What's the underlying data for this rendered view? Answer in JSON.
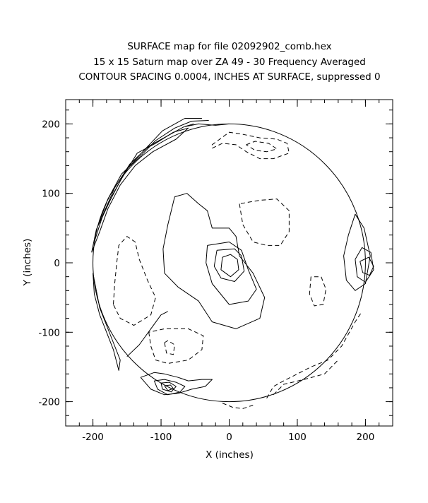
{
  "chart_data": {
    "type": "contour",
    "title_lines": [
      "SURFACE map for file 02092902_comb.hex",
      "15 x 15 Saturn map over ZA 49 - 30  Frequency Averaged",
      "CONTOUR SPACING 0.0004, INCHES AT SURFACE, suppressed 0"
    ],
    "xlabel": "X (inches)",
    "ylabel": "Y (inches)",
    "xlim": [
      -240,
      240
    ],
    "ylim": [
      -235,
      235
    ],
    "x_ticks": [
      -200,
      -100,
      0,
      100,
      200
    ],
    "y_ticks": [
      -200,
      -100,
      0,
      100,
      200
    ],
    "x_minor_step": 20,
    "y_minor_step": 20,
    "boundary_circle": {
      "center": [
        0,
        0
      ],
      "radius": 200
    },
    "contours": [
      {
        "style": "solid",
        "points": [
          [
            -95,
            -15
          ],
          [
            -97,
            20
          ],
          [
            -90,
            55
          ],
          [
            -80,
            95
          ],
          [
            -62,
            100
          ],
          [
            -45,
            85
          ],
          [
            -32,
            75
          ],
          [
            -25,
            50
          ],
          [
            0,
            50
          ],
          [
            10,
            38
          ],
          [
            15,
            10
          ],
          [
            35,
            -15
          ],
          [
            52,
            -50
          ],
          [
            45,
            -80
          ],
          [
            10,
            -95
          ],
          [
            -25,
            -85
          ],
          [
            -45,
            -55
          ],
          [
            -75,
            -35
          ],
          [
            -95,
            -15
          ]
        ]
      },
      {
        "style": "solid",
        "points": [
          [
            -32,
            25
          ],
          [
            -34,
            0
          ],
          [
            -25,
            -30
          ],
          [
            0,
            -60
          ],
          [
            28,
            -55
          ],
          [
            40,
            -38
          ],
          [
            28,
            -10
          ],
          [
            18,
            18
          ],
          [
            0,
            30
          ],
          [
            -32,
            25
          ]
        ]
      },
      {
        "style": "solid",
        "points": [
          [
            -18,
            18
          ],
          [
            -22,
            -5
          ],
          [
            -12,
            -22
          ],
          [
            8,
            -27
          ],
          [
            22,
            -12
          ],
          [
            18,
            10
          ],
          [
            8,
            20
          ],
          [
            -18,
            18
          ]
        ]
      },
      {
        "style": "solid",
        "points": [
          [
            -10,
            8
          ],
          [
            -12,
            -10
          ],
          [
            2,
            -20
          ],
          [
            14,
            -10
          ],
          [
            12,
            5
          ],
          [
            2,
            12
          ],
          [
            -10,
            8
          ]
        ]
      },
      {
        "style": "solid",
        "points": [
          [
            -202,
            15
          ],
          [
            -195,
            48
          ],
          [
            -180,
            80
          ],
          [
            -160,
            118
          ],
          [
            -135,
            158
          ],
          [
            -108,
            172
          ],
          [
            -82,
            188
          ],
          [
            -60,
            194
          ],
          [
            -78,
            178
          ],
          [
            -112,
            160
          ],
          [
            -138,
            140
          ],
          [
            -160,
            112
          ],
          [
            -178,
            78
          ],
          [
            -190,
            45
          ],
          [
            -202,
            15
          ]
        ]
      },
      {
        "style": "solid",
        "points": [
          [
            -198,
            30
          ],
          [
            -185,
            70
          ],
          [
            -168,
            108
          ],
          [
            -146,
            142
          ],
          [
            -118,
            168
          ],
          [
            -92,
            182
          ],
          [
            -66,
            196
          ],
          [
            -52,
            200
          ]
        ]
      },
      {
        "style": "solid",
        "points": [
          [
            -192,
            55
          ],
          [
            -178,
            92
          ],
          [
            -158,
            128
          ],
          [
            -132,
            152
          ],
          [
            -108,
            176
          ],
          [
            -80,
            194
          ],
          [
            -55,
            204
          ],
          [
            -30,
            205
          ]
        ]
      },
      {
        "style": "solid",
        "points": [
          [
            -188,
            62
          ],
          [
            -170,
            100
          ],
          [
            -150,
            135
          ],
          [
            -125,
            162
          ],
          [
            -98,
            190
          ],
          [
            -65,
            208
          ],
          [
            -40,
            208
          ]
        ]
      },
      {
        "style": "solid",
        "points": [
          [
            -200,
            -15
          ],
          [
            -195,
            -40
          ],
          [
            -190,
            -65
          ],
          [
            -180,
            -90
          ],
          [
            -170,
            -115
          ],
          [
            -160,
            -140
          ],
          [
            -162,
            -155
          ],
          [
            -170,
            -125
          ],
          [
            -180,
            -100
          ],
          [
            -190,
            -75
          ],
          [
            -198,
            -45
          ],
          [
            -200,
            -15
          ]
        ]
      },
      {
        "style": "solid",
        "points": [
          [
            -150,
            -135
          ],
          [
            -132,
            -118
          ],
          [
            -115,
            -95
          ],
          [
            -100,
            -75
          ],
          [
            -90,
            -70
          ]
        ]
      },
      {
        "style": "solid",
        "points": [
          [
            -130,
            -165
          ],
          [
            -110,
            -158
          ],
          [
            -95,
            -160
          ],
          [
            -75,
            -165
          ],
          [
            -60,
            -170
          ],
          [
            -40,
            -168
          ],
          [
            -25,
            -168
          ],
          [
            -35,
            -178
          ],
          [
            -55,
            -182
          ],
          [
            -75,
            -188
          ],
          [
            -95,
            -190
          ],
          [
            -115,
            -182
          ],
          [
            -130,
            -165
          ]
        ]
      },
      {
        "style": "solid",
        "points": [
          [
            -110,
            -170
          ],
          [
            -95,
            -168
          ],
          [
            -78,
            -172
          ],
          [
            -65,
            -178
          ],
          [
            -72,
            -186
          ],
          [
            -90,
            -190
          ],
          [
            -105,
            -182
          ],
          [
            -110,
            -170
          ]
        ]
      },
      {
        "style": "solid",
        "points": [
          [
            -100,
            -173
          ],
          [
            -88,
            -172
          ],
          [
            -78,
            -178
          ],
          [
            -85,
            -186
          ],
          [
            -98,
            -182
          ],
          [
            -100,
            -173
          ]
        ]
      },
      {
        "style": "solid",
        "points": [
          [
            -95,
            -177
          ],
          [
            -86,
            -176
          ],
          [
            -82,
            -181
          ],
          [
            -90,
            -184
          ],
          [
            -95,
            -177
          ]
        ]
      },
      {
        "style": "solid",
        "points": [
          [
            175,
            40
          ],
          [
            168,
            10
          ],
          [
            172,
            -25
          ],
          [
            185,
            -40
          ],
          [
            200,
            -30
          ],
          [
            207,
            10
          ],
          [
            198,
            50
          ],
          [
            185,
            70
          ],
          [
            175,
            40
          ]
        ]
      },
      {
        "style": "solid",
        "points": [
          [
            185,
            5
          ],
          [
            188,
            -20
          ],
          [
            200,
            -28
          ],
          [
            212,
            -10
          ],
          [
            208,
            15
          ],
          [
            195,
            22
          ],
          [
            185,
            5
          ]
        ]
      },
      {
        "style": "solid",
        "points": [
          [
            192,
            2
          ],
          [
            196,
            -14
          ],
          [
            206,
            -18
          ],
          [
            212,
            -5
          ],
          [
            205,
            8
          ],
          [
            192,
            2
          ]
        ]
      },
      {
        "style": "solid",
        "points": [
          [
            -65,
            196
          ],
          [
            -45,
            200
          ],
          [
            -20,
            198
          ],
          [
            0,
            200
          ]
        ]
      },
      {
        "style": "dashed",
        "points": [
          [
            -170,
            -60
          ],
          [
            -168,
            -30
          ],
          [
            -165,
            0
          ],
          [
            -162,
            25
          ],
          [
            -150,
            38
          ],
          [
            -138,
            30
          ],
          [
            -132,
            5
          ],
          [
            -120,
            -25
          ],
          [
            -108,
            -50
          ],
          [
            -115,
            -75
          ],
          [
            -140,
            -90
          ],
          [
            -160,
            -80
          ],
          [
            -170,
            -60
          ]
        ]
      },
      {
        "style": "dashed",
        "points": [
          [
            -118,
            -100
          ],
          [
            -115,
            -120
          ],
          [
            -108,
            -140
          ],
          [
            -90,
            -145
          ],
          [
            -60,
            -140
          ],
          [
            -40,
            -125
          ],
          [
            -38,
            -105
          ],
          [
            -60,
            -95
          ],
          [
            -95,
            -95
          ],
          [
            -118,
            -100
          ]
        ]
      },
      {
        "style": "dashed",
        "points": [
          [
            -95,
            -115
          ],
          [
            -92,
            -130
          ],
          [
            -82,
            -132
          ],
          [
            -80,
            -118
          ],
          [
            -90,
            -112
          ],
          [
            -95,
            -115
          ]
        ]
      },
      {
        "style": "dashed",
        "points": [
          [
            15,
            85
          ],
          [
            20,
            55
          ],
          [
            35,
            30
          ],
          [
            55,
            25
          ],
          [
            75,
            25
          ],
          [
            88,
            45
          ],
          [
            88,
            75
          ],
          [
            70,
            92
          ],
          [
            45,
            90
          ],
          [
            15,
            85
          ]
        ]
      },
      {
        "style": "dashed",
        "points": [
          [
            -25,
            165
          ],
          [
            -10,
            172
          ],
          [
            10,
            170
          ],
          [
            25,
            160
          ],
          [
            45,
            150
          ],
          [
            65,
            150
          ],
          [
            88,
            158
          ],
          [
            85,
            172
          ],
          [
            70,
            178
          ],
          [
            45,
            180
          ],
          [
            20,
            185
          ],
          [
            0,
            188
          ],
          [
            -25,
            170
          ],
          [
            -25,
            165
          ]
        ]
      },
      {
        "style": "dashed",
        "points": [
          [
            25,
            170
          ],
          [
            38,
            175
          ],
          [
            58,
            172
          ],
          [
            70,
            164
          ],
          [
            55,
            160
          ],
          [
            38,
            162
          ],
          [
            25,
            170
          ]
        ]
      },
      {
        "style": "dashed",
        "points": [
          [
            120,
            -20
          ],
          [
            118,
            -45
          ],
          [
            125,
            -62
          ],
          [
            138,
            -60
          ],
          [
            142,
            -38
          ],
          [
            135,
            -20
          ],
          [
            120,
            -20
          ]
        ]
      },
      {
        "style": "dashed",
        "points": [
          [
            55,
            -195
          ],
          [
            65,
            -178
          ],
          [
            80,
            -170
          ],
          [
            100,
            -160
          ],
          [
            120,
            -150
          ],
          [
            145,
            -140
          ],
          [
            165,
            -120
          ],
          [
            185,
            -85
          ],
          [
            195,
            -70
          ]
        ]
      },
      {
        "style": "dashed",
        "points": [
          [
            65,
            -190
          ],
          [
            80,
            -175
          ],
          [
            110,
            -168
          ],
          [
            140,
            -160
          ],
          [
            160,
            -140
          ]
        ]
      },
      {
        "style": "dashed",
        "points": [
          [
            -10,
            -202
          ],
          [
            5,
            -208
          ],
          [
            20,
            -210
          ],
          [
            35,
            -205
          ]
        ]
      }
    ]
  }
}
